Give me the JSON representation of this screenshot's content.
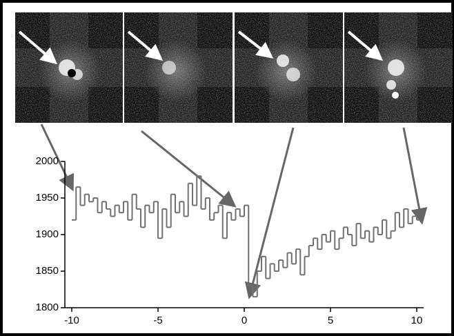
{
  "chart_data": {
    "type": "step",
    "x": [
      -10,
      -9.75,
      -9.5,
      -9.25,
      -9,
      -8.75,
      -8.5,
      -8.25,
      -8,
      -7.75,
      -7.5,
      -7.25,
      -7,
      -6.75,
      -6.5,
      -6.25,
      -6,
      -5.75,
      -5.5,
      -5.25,
      -5,
      -4.75,
      -4.5,
      -4.25,
      -4,
      -3.75,
      -3.5,
      -3.25,
      -3,
      -2.75,
      -2.5,
      -2.25,
      -2,
      -1.75,
      -1.5,
      -1.25,
      -1,
      -0.75,
      -0.5,
      -0.25,
      0,
      0.25,
      0.5,
      0.75,
      1,
      1.25,
      1.5,
      1.75,
      2,
      2.25,
      2.5,
      2.75,
      3,
      3.25,
      3.5,
      3.75,
      4,
      4.25,
      4.5,
      4.75,
      5,
      5.25,
      5.5,
      5.75,
      6,
      6.25,
      6.5,
      6.75,
      7,
      7.25,
      7.5,
      7.75,
      8,
      8.25,
      8.5,
      8.75,
      9,
      9.25,
      9.5,
      9.75,
      10
    ],
    "values": [
      1920,
      1965,
      1940,
      1955,
      1945,
      1950,
      1930,
      1945,
      1935,
      1925,
      1940,
      1930,
      1945,
      1920,
      1955,
      1935,
      1910,
      1940,
      1930,
      1945,
      1895,
      1935,
      1910,
      1955,
      1930,
      1945,
      1925,
      1970,
      1940,
      1980,
      1935,
      1950,
      1920,
      1930,
      1940,
      1895,
      1930,
      1920,
      1935,
      1925,
      1940,
      1830,
      1815,
      1850,
      1870,
      1840,
      1860,
      1850,
      1865,
      1855,
      1875,
      1860,
      1880,
      1845,
      1870,
      1885,
      1895,
      1880,
      1900,
      1890,
      1905,
      1880,
      1895,
      1910,
      1900,
      1885,
      1915,
      1895,
      1905,
      1890,
      1910,
      1900,
      1920,
      1895,
      1905,
      1930,
      1910,
      1935,
      1915,
      1925,
      1920
    ],
    "color": "#707070",
    "xlim": [
      -10.4,
      10.4
    ],
    "ylim": [
      1800,
      2000
    ],
    "xticks": [
      -10,
      -5,
      0,
      5,
      10
    ],
    "yticks": [
      1800,
      1850,
      1900,
      1950,
      2000
    ]
  }
}
